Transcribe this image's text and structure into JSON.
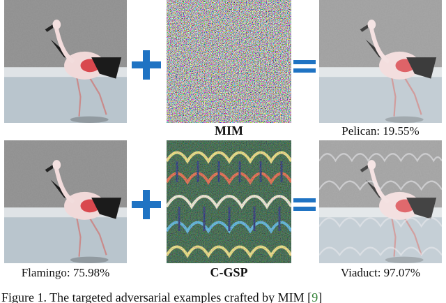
{
  "figure": {
    "rows": [
      {
        "perturbation_label": "MIM",
        "source_caption": "",
        "result_caption": "Pelican: 19.55%"
      },
      {
        "perturbation_label": "C-GSP",
        "source_caption": "Flamingo: 75.98%",
        "result_caption": "Viaduct: 97.07%"
      }
    ],
    "operators": {
      "plus": "+",
      "equals": "="
    },
    "colors": {
      "operator_blue": "#1f73c3",
      "water": "#b0bcc6",
      "shore": "#8f8f8f"
    },
    "caption": {
      "text_before_ref": "Figure 1. The targeted adversarial examples crafted by MIM [",
      "ref": "9",
      "text_after_ref": "]"
    }
  }
}
